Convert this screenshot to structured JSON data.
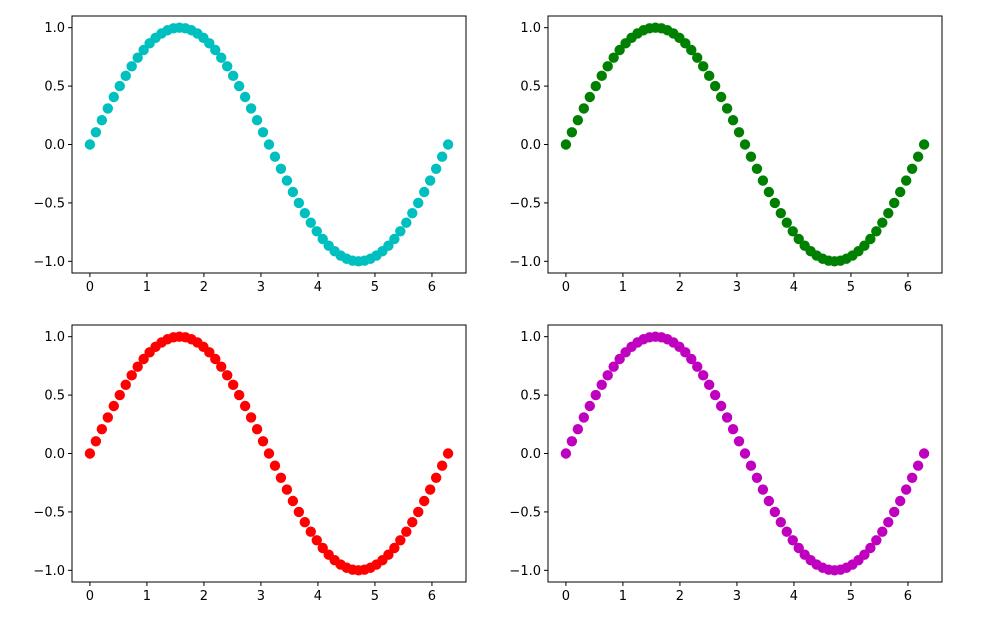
{
  "figure": {
    "background": "#ffffff"
  },
  "chart_data": [
    {
      "type": "scatter",
      "title": "",
      "xlabel": "",
      "ylabel": "",
      "grid": false,
      "xlim": [
        -0.3142,
        6.5973
      ],
      "ylim": [
        -1.1,
        1.1
      ],
      "xticks": [
        0,
        1,
        2,
        3,
        4,
        5,
        6
      ],
      "xtick_labels": [
        "0",
        "1",
        "2",
        "3",
        "4",
        "5",
        "6"
      ],
      "yticks": [
        -1.0,
        -0.5,
        0.0,
        0.5,
        1.0
      ],
      "ytick_labels": [
        "−1.0",
        "−0.5",
        "0.0",
        "0.5",
        "1.0"
      ],
      "marker_color": "#00bfbf",
      "series": [
        {
          "x": [
            0,
            0.1047,
            0.2094,
            0.3142,
            0.4189,
            0.5236,
            0.6283,
            0.733,
            0.8378,
            0.9425,
            1.0472,
            1.1519,
            1.2566,
            1.3614,
            1.4661,
            1.5708,
            1.6755,
            1.7802,
            1.885,
            1.9897,
            2.0944,
            2.1991,
            2.3038,
            2.4086,
            2.5133,
            2.618,
            2.7227,
            2.8274,
            2.9322,
            3.0369,
            3.1416,
            3.2463,
            3.351,
            3.4558,
            3.5605,
            3.6652,
            3.7699,
            3.8746,
            3.9794,
            4.0841,
            4.1888,
            4.2935,
            4.3982,
            4.503,
            4.6077,
            4.7124,
            4.8171,
            4.9218,
            5.0265,
            5.1313,
            5.236,
            5.3407,
            5.4454,
            5.5501,
            5.6549,
            5.7596,
            5.8643,
            5.969,
            6.0737,
            6.1785,
            6.2832
          ],
          "y": [
            0,
            0.1045,
            0.2079,
            0.309,
            0.4067,
            0.5,
            0.5878,
            0.6691,
            0.7431,
            0.809,
            0.866,
            0.9135,
            0.9511,
            0.9781,
            0.9945,
            1,
            0.9945,
            0.9781,
            0.9511,
            0.9135,
            0.866,
            0.809,
            0.7431,
            0.6691,
            0.5878,
            0.5,
            0.4067,
            0.309,
            0.2079,
            0.1045,
            0,
            -0.1045,
            -0.2079,
            -0.309,
            -0.4067,
            -0.5,
            -0.5878,
            -0.6691,
            -0.7431,
            -0.809,
            -0.866,
            -0.9135,
            -0.9511,
            -0.9781,
            -0.9945,
            -1,
            -0.9945,
            -0.9781,
            -0.9511,
            -0.9135,
            -0.866,
            -0.809,
            -0.7431,
            -0.6691,
            -0.5878,
            -0.5,
            -0.4067,
            -0.309,
            -0.2079,
            -0.1045,
            0
          ]
        }
      ]
    },
    {
      "type": "scatter",
      "title": "",
      "xlabel": "",
      "ylabel": "",
      "grid": false,
      "xlim": [
        -0.3142,
        6.5973
      ],
      "ylim": [
        -1.1,
        1.1
      ],
      "xticks": [
        0,
        1,
        2,
        3,
        4,
        5,
        6
      ],
      "xtick_labels": [
        "0",
        "1",
        "2",
        "3",
        "4",
        "5",
        "6"
      ],
      "yticks": [
        -1.0,
        -0.5,
        0.0,
        0.5,
        1.0
      ],
      "ytick_labels": [
        "−1.0",
        "−0.5",
        "0.0",
        "0.5",
        "1.0"
      ],
      "marker_color": "#008000",
      "series": [
        {
          "x": [
            0,
            0.1047,
            0.2094,
            0.3142,
            0.4189,
            0.5236,
            0.6283,
            0.733,
            0.8378,
            0.9425,
            1.0472,
            1.1519,
            1.2566,
            1.3614,
            1.4661,
            1.5708,
            1.6755,
            1.7802,
            1.885,
            1.9897,
            2.0944,
            2.1991,
            2.3038,
            2.4086,
            2.5133,
            2.618,
            2.7227,
            2.8274,
            2.9322,
            3.0369,
            3.1416,
            3.2463,
            3.351,
            3.4558,
            3.5605,
            3.6652,
            3.7699,
            3.8746,
            3.9794,
            4.0841,
            4.1888,
            4.2935,
            4.3982,
            4.503,
            4.6077,
            4.7124,
            4.8171,
            4.9218,
            5.0265,
            5.1313,
            5.236,
            5.3407,
            5.4454,
            5.5501,
            5.6549,
            5.7596,
            5.8643,
            5.969,
            6.0737,
            6.1785,
            6.2832
          ],
          "y": [
            0,
            0.1045,
            0.2079,
            0.309,
            0.4067,
            0.5,
            0.5878,
            0.6691,
            0.7431,
            0.809,
            0.866,
            0.9135,
            0.9511,
            0.9781,
            0.9945,
            1,
            0.9945,
            0.9781,
            0.9511,
            0.9135,
            0.866,
            0.809,
            0.7431,
            0.6691,
            0.5878,
            0.5,
            0.4067,
            0.309,
            0.2079,
            0.1045,
            0,
            -0.1045,
            -0.2079,
            -0.309,
            -0.4067,
            -0.5,
            -0.5878,
            -0.6691,
            -0.7431,
            -0.809,
            -0.866,
            -0.9135,
            -0.9511,
            -0.9781,
            -0.9945,
            -1,
            -0.9945,
            -0.9781,
            -0.9511,
            -0.9135,
            -0.866,
            -0.809,
            -0.7431,
            -0.6691,
            -0.5878,
            -0.5,
            -0.4067,
            -0.309,
            -0.2079,
            -0.1045,
            0
          ]
        }
      ]
    },
    {
      "type": "scatter",
      "title": "",
      "xlabel": "",
      "ylabel": "",
      "grid": false,
      "xlim": [
        -0.3142,
        6.5973
      ],
      "ylim": [
        -1.1,
        1.1
      ],
      "xticks": [
        0,
        1,
        2,
        3,
        4,
        5,
        6
      ],
      "xtick_labels": [
        "0",
        "1",
        "2",
        "3",
        "4",
        "5",
        "6"
      ],
      "yticks": [
        -1.0,
        -0.5,
        0.0,
        0.5,
        1.0
      ],
      "ytick_labels": [
        "−1.0",
        "−0.5",
        "0.0",
        "0.5",
        "1.0"
      ],
      "marker_color": "#ff0000",
      "series": [
        {
          "x": [
            0,
            0.1047,
            0.2094,
            0.3142,
            0.4189,
            0.5236,
            0.6283,
            0.733,
            0.8378,
            0.9425,
            1.0472,
            1.1519,
            1.2566,
            1.3614,
            1.4661,
            1.5708,
            1.6755,
            1.7802,
            1.885,
            1.9897,
            2.0944,
            2.1991,
            2.3038,
            2.4086,
            2.5133,
            2.618,
            2.7227,
            2.8274,
            2.9322,
            3.0369,
            3.1416,
            3.2463,
            3.351,
            3.4558,
            3.5605,
            3.6652,
            3.7699,
            3.8746,
            3.9794,
            4.0841,
            4.1888,
            4.2935,
            4.3982,
            4.503,
            4.6077,
            4.7124,
            4.8171,
            4.9218,
            5.0265,
            5.1313,
            5.236,
            5.3407,
            5.4454,
            5.5501,
            5.6549,
            5.7596,
            5.8643,
            5.969,
            6.0737,
            6.1785,
            6.2832
          ],
          "y": [
            0,
            0.1045,
            0.2079,
            0.309,
            0.4067,
            0.5,
            0.5878,
            0.6691,
            0.7431,
            0.809,
            0.866,
            0.9135,
            0.9511,
            0.9781,
            0.9945,
            1,
            0.9945,
            0.9781,
            0.9511,
            0.9135,
            0.866,
            0.809,
            0.7431,
            0.6691,
            0.5878,
            0.5,
            0.4067,
            0.309,
            0.2079,
            0.1045,
            0,
            -0.1045,
            -0.2079,
            -0.309,
            -0.4067,
            -0.5,
            -0.5878,
            -0.6691,
            -0.7431,
            -0.809,
            -0.866,
            -0.9135,
            -0.9511,
            -0.9781,
            -0.9945,
            -1,
            -0.9945,
            -0.9781,
            -0.9511,
            -0.9135,
            -0.866,
            -0.809,
            -0.7431,
            -0.6691,
            -0.5878,
            -0.5,
            -0.4067,
            -0.309,
            -0.2079,
            -0.1045,
            0
          ]
        }
      ]
    },
    {
      "type": "scatter",
      "title": "",
      "xlabel": "",
      "ylabel": "",
      "grid": false,
      "xlim": [
        -0.3142,
        6.5973
      ],
      "ylim": [
        -1.1,
        1.1
      ],
      "xticks": [
        0,
        1,
        2,
        3,
        4,
        5,
        6
      ],
      "xtick_labels": [
        "0",
        "1",
        "2",
        "3",
        "4",
        "5",
        "6"
      ],
      "yticks": [
        -1.0,
        -0.5,
        0.0,
        0.5,
        1.0
      ],
      "ytick_labels": [
        "−1.0",
        "−0.5",
        "0.0",
        "0.5",
        "1.0"
      ],
      "marker_color": "#bf00bf",
      "series": [
        {
          "x": [
            0,
            0.1047,
            0.2094,
            0.3142,
            0.4189,
            0.5236,
            0.6283,
            0.733,
            0.8378,
            0.9425,
            1.0472,
            1.1519,
            1.2566,
            1.3614,
            1.4661,
            1.5708,
            1.6755,
            1.7802,
            1.885,
            1.9897,
            2.0944,
            2.1991,
            2.3038,
            2.4086,
            2.5133,
            2.618,
            2.7227,
            2.8274,
            2.9322,
            3.0369,
            3.1416,
            3.2463,
            3.351,
            3.4558,
            3.5605,
            3.6652,
            3.7699,
            3.8746,
            3.9794,
            4.0841,
            4.1888,
            4.2935,
            4.3982,
            4.503,
            4.6077,
            4.7124,
            4.8171,
            4.9218,
            5.0265,
            5.1313,
            5.236,
            5.3407,
            5.4454,
            5.5501,
            5.6549,
            5.7596,
            5.8643,
            5.969,
            6.0737,
            6.1785,
            6.2832
          ],
          "y": [
            0,
            0.1045,
            0.2079,
            0.309,
            0.4067,
            0.5,
            0.5878,
            0.6691,
            0.7431,
            0.809,
            0.866,
            0.9135,
            0.9511,
            0.9781,
            0.9945,
            1,
            0.9945,
            0.9781,
            0.9511,
            0.9135,
            0.866,
            0.809,
            0.7431,
            0.6691,
            0.5878,
            0.5,
            0.4067,
            0.309,
            0.2079,
            0.1045,
            0,
            -0.1045,
            -0.2079,
            -0.309,
            -0.4067,
            -0.5,
            -0.5878,
            -0.6691,
            -0.7431,
            -0.809,
            -0.866,
            -0.9135,
            -0.9511,
            -0.9781,
            -0.9945,
            -1,
            -0.9945,
            -0.9781,
            -0.9511,
            -0.9135,
            -0.866,
            -0.809,
            -0.7431,
            -0.6691,
            -0.5878,
            -0.5,
            -0.4067,
            -0.309,
            -0.2079,
            -0.1045,
            0
          ]
        }
      ]
    }
  ]
}
